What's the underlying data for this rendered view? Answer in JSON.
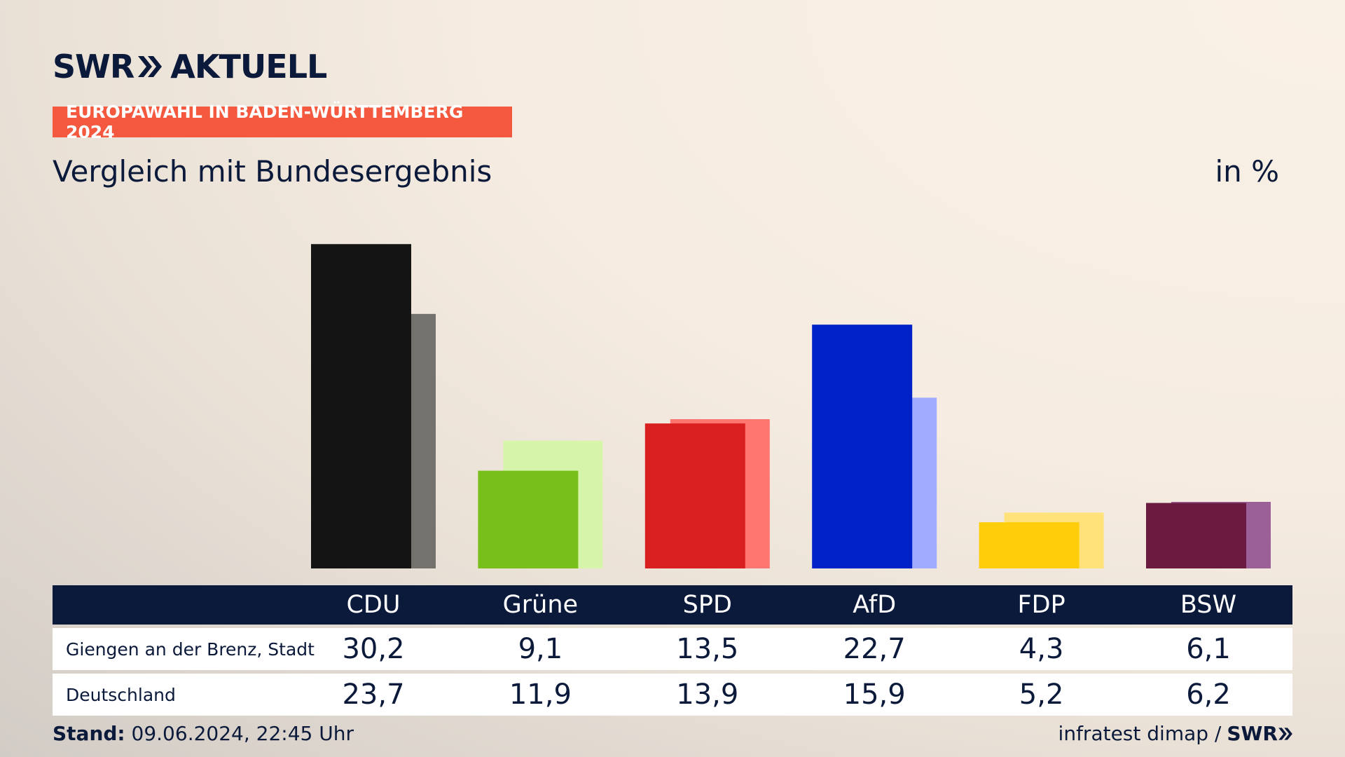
{
  "brand": {
    "logo_left": "SWR",
    "logo_right": "AKTUELL"
  },
  "badge": "EUROPAWAHL IN BADEN-WÜRTTEMBERG 2024",
  "subtitle": "Vergleich mit Bundesergebnis",
  "unit": "in %",
  "colors": {
    "navy": "#0b1a3a",
    "badge": "#f4593f"
  },
  "chart_data": {
    "type": "bar",
    "categories": [
      "CDU",
      "Grüne",
      "SPD",
      "AfD",
      "FDP",
      "BSW"
    ],
    "series": [
      {
        "name": "Giengen an der Brenz, Stadt",
        "values": [
          30.2,
          9.1,
          13.5,
          22.7,
          4.3,
          6.1
        ],
        "colors": [
          "#141414",
          "#79bf1c",
          "#d91f1f",
          "#0021c7",
          "#ffcd0a",
          "#6b1a40"
        ]
      },
      {
        "name": "Deutschland",
        "values": [
          23.7,
          11.9,
          13.9,
          15.9,
          5.2,
          6.2
        ],
        "colors": [
          "#74726d",
          "#d7f5aa",
          "#ff7570",
          "#a0abff",
          "#ffe37a",
          "#9a6097"
        ]
      }
    ],
    "value_labels": [
      [
        "30,2",
        "9,1",
        "13,5",
        "22,7",
        "4,3",
        "6,1"
      ],
      [
        "23,7",
        "11,9",
        "13,9",
        "15,9",
        "5,2",
        "6,2"
      ]
    ],
    "ylim": [
      0,
      31
    ],
    "grid": false,
    "legend": "table-below"
  },
  "footer": {
    "stand_label": "Stand:",
    "stand_value": "09.06.2024, 22:45 Uhr",
    "source": "infratest dimap /",
    "source_logo": "SWR"
  }
}
